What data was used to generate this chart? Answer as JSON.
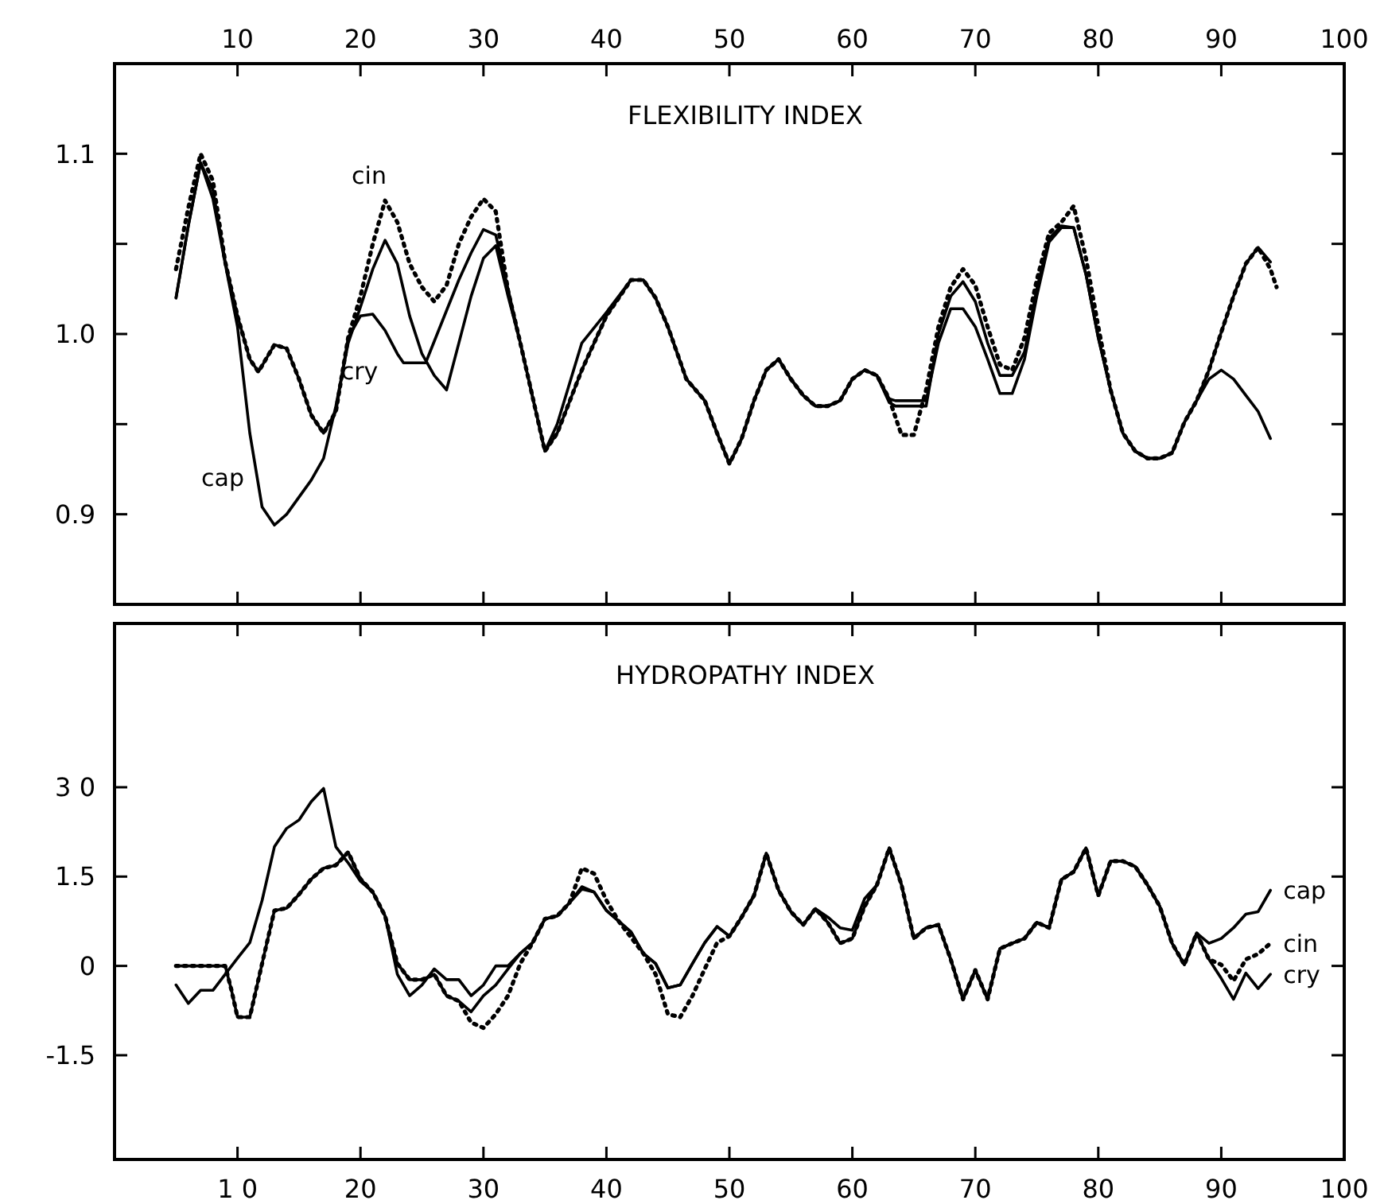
{
  "chart_data": [
    {
      "type": "line",
      "title": "FLEXIBILITY INDEX",
      "xlim": [
        0,
        100
      ],
      "xticks": [
        10,
        20,
        30,
        40,
        50,
        60,
        70,
        80,
        90,
        100
      ],
      "ylim": [
        0.85,
        1.15
      ],
      "yticks": [
        {
          "value": 0.9,
          "label": "0.9"
        },
        {
          "value": 0.95,
          "label": null
        },
        {
          "value": 1.0,
          "label": "1.0"
        },
        {
          "value": 1.05,
          "label": null
        },
        {
          "value": 1.1,
          "label": "1.1"
        }
      ],
      "grid": false,
      "marker": "none",
      "annotations": [
        "cap",
        "cin",
        "cry"
      ],
      "series": [
        {
          "color": "#000000",
          "line_style": "solid",
          "x": [
            5,
            6,
            7,
            8,
            9,
            10,
            11,
            12,
            13,
            14,
            16,
            17,
            18,
            19,
            20,
            21,
            22,
            23,
            24,
            25,
            26,
            27,
            28,
            29,
            30,
            31,
            32,
            33,
            34,
            35,
            36,
            38,
            40,
            42,
            43,
            44,
            45,
            46.5,
            48,
            49,
            50,
            51,
            52,
            53,
            54,
            55,
            56,
            57,
            58,
            59,
            60,
            61,
            62,
            63,
            63.5,
            66,
            67,
            68,
            69,
            70,
            71,
            72,
            73,
            74,
            75,
            76,
            77,
            78,
            79,
            80,
            81,
            82,
            83,
            84,
            85,
            86,
            87,
            88,
            89,
            90,
            91,
            92,
            93,
            94
          ],
          "values": [
            1.02,
            1.06,
            1.095,
            1.075,
            1.039,
            1.004,
            0.945,
            0.904,
            0.894,
            0.9,
            0.919,
            0.931,
            0.96,
            0.995,
            1.015,
            1.036,
            1.052,
            1.039,
            1.01,
            0.989,
            0.977,
            0.969,
            0.995,
            1.021,
            1.042,
            1.049,
            1.021,
            0.995,
            0.965,
            0.935,
            0.95,
            0.995,
            1.012,
            1.03,
            1.03,
            1.02,
            1.004,
            0.975,
            0.963,
            0.945,
            0.928,
            0.942,
            0.963,
            0.98,
            0.986,
            0.975,
            0.966,
            0.96,
            0.96,
            0.963,
            0.975,
            0.98,
            0.977,
            0.962,
            0.96,
            0.96,
            1.0,
            1.021,
            1.029,
            1.018,
            0.995,
            0.977,
            0.977,
            0.99,
            1.025,
            1.053,
            1.06,
            1.059,
            1.033,
            0.998,
            0.969,
            0.945,
            0.935,
            0.931,
            0.931,
            0.934,
            0.951,
            0.963,
            0.975,
            0.98,
            0.975,
            0.966,
            0.957,
            0.942
          ]
        },
        {
          "color": "#000000",
          "line_style": "dotted",
          "x": [
            5,
            6,
            7,
            8,
            9,
            10,
            11,
            11.7,
            13,
            14,
            15,
            16,
            17,
            18,
            19,
            20,
            21,
            22,
            23,
            24,
            25,
            26,
            27,
            28,
            29,
            30,
            31,
            32,
            33,
            34,
            35,
            36,
            38,
            40,
            42,
            43,
            44,
            45,
            46.5,
            48,
            49,
            50,
            51,
            52,
            53,
            54,
            55,
            56,
            57,
            58,
            59,
            60,
            61,
            62,
            63,
            64,
            65,
            66,
            67,
            68,
            69,
            70,
            71,
            72,
            73,
            74,
            75,
            76,
            77,
            78,
            79,
            80,
            81,
            82,
            83,
            84,
            85,
            86,
            87,
            88,
            89,
            90,
            91,
            92,
            93,
            94,
            94.5
          ],
          "values": [
            1.036,
            1.07,
            1.1,
            1.085,
            1.04,
            1.01,
            0.986,
            0.979,
            0.994,
            0.992,
            0.975,
            0.955,
            0.945,
            0.957,
            0.998,
            1.021,
            1.05,
            1.074,
            1.062,
            1.039,
            1.026,
            1.018,
            1.027,
            1.05,
            1.065,
            1.075,
            1.068,
            1.024,
            0.995,
            0.965,
            0.935,
            0.945,
            0.98,
            1.01,
            1.03,
            1.03,
            1.02,
            1.004,
            0.975,
            0.963,
            0.945,
            0.928,
            0.942,
            0.963,
            0.98,
            0.986,
            0.975,
            0.966,
            0.96,
            0.96,
            0.963,
            0.975,
            0.98,
            0.977,
            0.964,
            0.944,
            0.944,
            0.969,
            1.004,
            1.026,
            1.036,
            1.027,
            1.004,
            0.983,
            0.98,
            0.998,
            1.03,
            1.056,
            1.062,
            1.071,
            1.042,
            1.004,
            0.969,
            0.945,
            0.935,
            0.931,
            0.931,
            0.934,
            0.951,
            0.963,
            0.98,
            1.001,
            1.021,
            1.039,
            1.048,
            1.036,
            1.026
          ]
        },
        {
          "color": "#000000",
          "line_style": "solid",
          "x": [
            5,
            6,
            7,
            8,
            9,
            10,
            11,
            11.7,
            13,
            14,
            15,
            16,
            17,
            18,
            19,
            20,
            21,
            22,
            23,
            23.5,
            25.3,
            27,
            28,
            29,
            30,
            31,
            32,
            33,
            34,
            35,
            36,
            38,
            40,
            42,
            43,
            44,
            45,
            46.5,
            48,
            49,
            50,
            51,
            52,
            53,
            54,
            55,
            56,
            57,
            58,
            59,
            60,
            61,
            62,
            63,
            63.5,
            66,
            67,
            68,
            69,
            70,
            71,
            72,
            73,
            74,
            75,
            76,
            77,
            78,
            79,
            80,
            81,
            82,
            83,
            84,
            85,
            86,
            87,
            88,
            89,
            90,
            91,
            92,
            93,
            94
          ],
          "values": [
            1.02,
            1.06,
            1.095,
            1.08,
            1.04,
            1.01,
            0.986,
            0.979,
            0.994,
            0.992,
            0.975,
            0.955,
            0.945,
            0.957,
            0.998,
            1.01,
            1.011,
            1.002,
            0.989,
            0.984,
            0.984,
            1.013,
            1.03,
            1.045,
            1.058,
            1.055,
            1.025,
            0.995,
            0.965,
            0.935,
            0.945,
            0.98,
            1.01,
            1.03,
            1.03,
            1.02,
            1.004,
            0.975,
            0.963,
            0.945,
            0.928,
            0.942,
            0.963,
            0.98,
            0.986,
            0.975,
            0.966,
            0.96,
            0.96,
            0.963,
            0.975,
            0.98,
            0.977,
            0.964,
            0.963,
            0.963,
            0.995,
            1.014,
            1.014,
            1.004,
            0.986,
            0.967,
            0.967,
            0.986,
            1.021,
            1.051,
            1.059,
            1.059,
            1.033,
            0.998,
            0.969,
            0.945,
            0.935,
            0.931,
            0.931,
            0.934,
            0.951,
            0.963,
            0.98,
            1.001,
            1.021,
            1.039,
            1.048,
            1.04
          ]
        }
      ]
    },
    {
      "type": "line",
      "title": "HYDROPATHY INDEX",
      "xlim": [
        0,
        100
      ],
      "xticks": [
        {
          "value": 10,
          "label": "1 0"
        },
        20,
        30,
        40,
        50,
        60,
        70,
        80,
        90,
        100
      ],
      "ylim": [
        -3.25,
        5.75
      ],
      "yticks": [
        {
          "value": -1.5,
          "label": "-1.5"
        },
        0,
        1.5,
        {
          "value": 3,
          "label": "3 0"
        }
      ],
      "grid": false,
      "legend": "right",
      "marker": "none",
      "series": [
        {
          "name": "cap",
          "color": "#000000",
          "line_style": "solid",
          "x": [
            5,
            6,
            7,
            8,
            9,
            10,
            11,
            12,
            13,
            14,
            15,
            16,
            17,
            18,
            19,
            20,
            21,
            22,
            23,
            24,
            25,
            26,
            27,
            28,
            29,
            30,
            31,
            32,
            33,
            34,
            35,
            36,
            37,
            38,
            39,
            40,
            41,
            42,
            43,
            44,
            45,
            46,
            47,
            48,
            49,
            50,
            51,
            52,
            53,
            54,
            55,
            56,
            57,
            58,
            59,
            60,
            61,
            62,
            63,
            64,
            65,
            66,
            67,
            68,
            69,
            70,
            71,
            72,
            73,
            74,
            75,
            76,
            77,
            78,
            79,
            80,
            81,
            82,
            83,
            84,
            85,
            86,
            87,
            88,
            89,
            90,
            91,
            92,
            93,
            94
          ],
          "values": [
            -0.32,
            -0.63,
            -0.41,
            -0.41,
            -0.14,
            0.13,
            0.39,
            1.1,
            2.0,
            2.31,
            2.45,
            2.76,
            2.98,
            2.0,
            1.73,
            1.42,
            1.24,
            0.84,
            -0.14,
            -0.5,
            -0.32,
            -0.05,
            -0.23,
            -0.23,
            -0.5,
            -0.32,
            0,
            0,
            0.21,
            0.39,
            0.79,
            0.84,
            1.06,
            1.29,
            1.24,
            0.93,
            0.75,
            0.57,
            0.21,
            0.04,
            -0.37,
            -0.32,
            0.04,
            0.39,
            0.66,
            0.5,
            0.82,
            1.18,
            1.89,
            1.27,
            0.91,
            0.69,
            0.96,
            0.82,
            0.64,
            0.6,
            1.13,
            1.36,
            1.98,
            1.36,
            0.46,
            0.64,
            0.69,
            0.11,
            -0.56,
            -0.07,
            -0.56,
            0.29,
            0.38,
            0.46,
            0.73,
            0.64,
            1.45,
            1.58,
            1.98,
            1.18,
            1.76,
            1.76,
            1.67,
            1.36,
            1.0,
            0.38,
            0.02,
            0.55,
            0.38,
            0.46,
            0.64,
            0.87,
            0.91,
            1.27
          ]
        },
        {
          "name": "cin",
          "color": "#000000",
          "line_style": "dotted",
          "x": [
            5,
            9,
            9.5,
            10,
            11,
            12,
            13,
            14,
            15,
            16,
            17,
            18,
            19,
            20,
            21,
            22,
            23,
            24,
            25,
            26,
            27,
            28,
            29,
            30,
            31,
            32,
            33,
            34,
            35,
            36,
            37,
            38,
            39,
            40,
            41,
            42,
            43,
            44,
            45,
            46,
            47,
            48,
            49,
            50,
            51,
            52,
            53,
            54,
            55,
            56,
            57,
            58,
            59,
            60,
            61,
            62,
            63,
            64,
            65,
            66,
            67,
            68,
            69,
            70,
            71,
            72,
            73,
            74,
            75,
            76,
            77,
            78,
            79,
            80,
            81,
            82,
            83,
            84,
            85,
            86,
            87,
            88,
            89,
            90,
            91,
            92,
            93,
            94
          ],
          "values": [
            0,
            0,
            -0.4,
            -0.86,
            -0.86,
            0.04,
            0.93,
            0.97,
            1.2,
            1.46,
            1.64,
            1.69,
            1.91,
            1.46,
            1.24,
            0.84,
            0.04,
            -0.23,
            -0.23,
            -0.14,
            -0.5,
            -0.59,
            -0.95,
            -1.04,
            -0.81,
            -0.5,
            0.04,
            0.39,
            0.79,
            0.84,
            1.06,
            1.64,
            1.55,
            1.1,
            0.75,
            0.48,
            0.21,
            -0.14,
            -0.81,
            -0.86,
            -0.5,
            -0.05,
            0.39,
            0.5,
            0.82,
            1.18,
            1.89,
            1.27,
            0.91,
            0.69,
            0.96,
            0.73,
            0.38,
            0.46,
            1.0,
            1.36,
            1.98,
            1.36,
            0.46,
            0.64,
            0.69,
            0.11,
            -0.56,
            -0.07,
            -0.56,
            0.29,
            0.38,
            0.46,
            0.73,
            0.64,
            1.45,
            1.58,
            1.98,
            1.18,
            1.76,
            1.76,
            1.67,
            1.36,
            1.0,
            0.38,
            0.02,
            0.55,
            0.11,
            0.02,
            -0.25,
            0.11,
            0.2,
            0.38
          ]
        },
        {
          "name": "cry",
          "color": "#000000",
          "line_style": "solid",
          "x": [
            5,
            9,
            9.5,
            10,
            11,
            12,
            13,
            14,
            15,
            16,
            17,
            18,
            19,
            20,
            21,
            22,
            23,
            24,
            25,
            26,
            27,
            28,
            29,
            30,
            31,
            32,
            33,
            34,
            35,
            36,
            37,
            38,
            39,
            40,
            41,
            42,
            43,
            44,
            45,
            46,
            47,
            48,
            49,
            50,
            51,
            52,
            53,
            54,
            55,
            56,
            57,
            58,
            59,
            60,
            61,
            62,
            63,
            64,
            65,
            66,
            67,
            68,
            69,
            70,
            71,
            72,
            73,
            74,
            75,
            76,
            77,
            78,
            79,
            80,
            81,
            82,
            83,
            84,
            85,
            86,
            87,
            88,
            89,
            90,
            91,
            92,
            93,
            94
          ],
          "values": [
            0,
            0,
            -0.4,
            -0.86,
            -0.86,
            0.04,
            0.93,
            0.97,
            1.2,
            1.46,
            1.64,
            1.69,
            1.91,
            1.46,
            1.24,
            0.84,
            0.04,
            -0.23,
            -0.23,
            -0.14,
            -0.5,
            -0.59,
            -0.77,
            -0.5,
            -0.32,
            -0.05,
            0.21,
            0.39,
            0.79,
            0.84,
            1.06,
            1.33,
            1.24,
            0.93,
            0.75,
            0.57,
            0.21,
            0.04,
            -0.37,
            -0.32,
            0.04,
            0.39,
            0.66,
            0.5,
            0.82,
            1.18,
            1.89,
            1.27,
            0.91,
            0.69,
            0.96,
            0.73,
            0.38,
            0.46,
            1.0,
            1.36,
            1.98,
            1.36,
            0.46,
            0.64,
            0.69,
            0.11,
            -0.56,
            -0.07,
            -0.56,
            0.29,
            0.38,
            0.46,
            0.73,
            0.64,
            1.45,
            1.58,
            1.98,
            1.18,
            1.76,
            1.76,
            1.67,
            1.36,
            1.0,
            0.38,
            0.02,
            0.55,
            0.11,
            -0.21,
            -0.56,
            -0.12,
            -0.38,
            -0.14
          ]
        }
      ]
    }
  ]
}
